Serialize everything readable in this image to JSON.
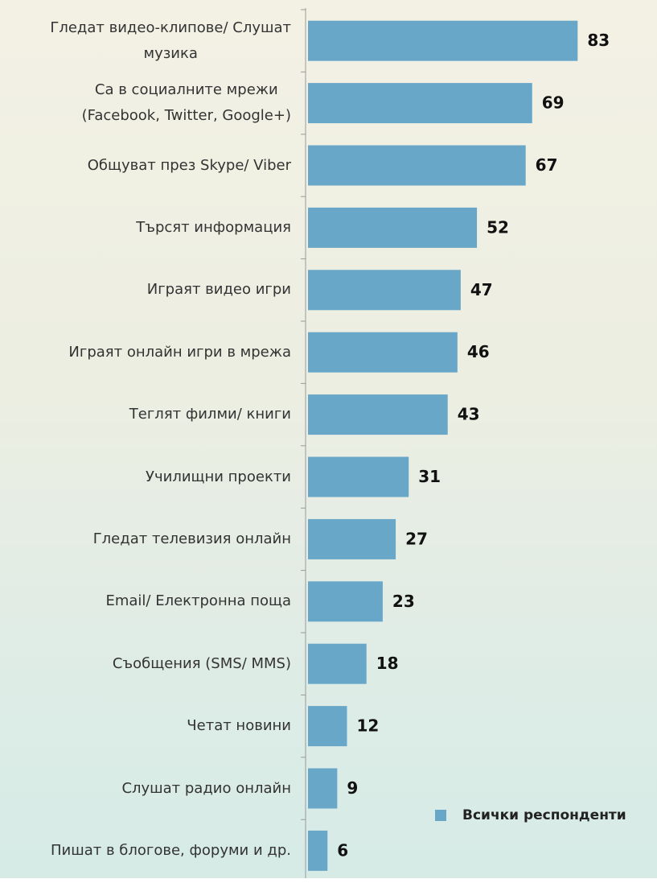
{
  "chart_data": {
    "type": "bar",
    "orientation": "horizontal",
    "categories": [
      "Гледат видео-клипове/ Слушат\nмузика",
      "Са в социалните мрежи\n(Facebook, Twitter, Google+)",
      "Общуват през Skype/ Viber",
      "Търсят информация",
      "Играят видео игри",
      "Играят онлайн игри в мрежа",
      "Теглят филми/ книги",
      "Училищни проекти",
      "Гледат телевизия онлайн",
      "Email/ Електронна поща",
      "Съобщения (SMS/ MMS)",
      "Четат новини",
      "Слушат радио онлайн",
      "Пишат в блогове, форуми и др."
    ],
    "series": [
      {
        "name": "Всички респонденти",
        "color": "#69a7c8",
        "values": [
          83,
          69,
          67,
          52,
          47,
          46,
          43,
          31,
          27,
          23,
          18,
          12,
          9,
          6
        ]
      }
    ],
    "xlim": [
      0,
      100
    ],
    "legend": "lower right"
  }
}
